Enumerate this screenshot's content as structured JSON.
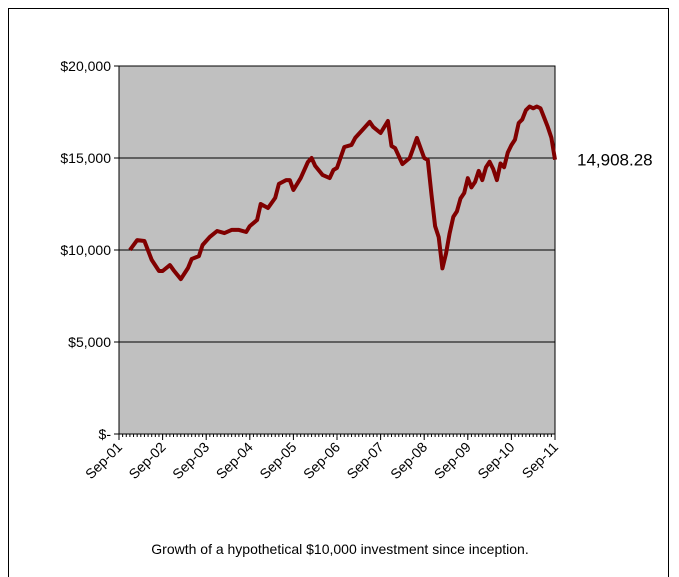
{
  "chart_data": {
    "type": "line",
    "caption": "Growth of a hypothetical $10,000 investment since inception.",
    "x": [
      "Dec-01",
      "Feb-02",
      "Apr-02",
      "Jun-02",
      "Aug-02",
      "Sep-02",
      "Nov-02",
      "Dec-02",
      "Feb-03",
      "Apr-03",
      "May-03",
      "Jul-03",
      "Aug-03",
      "Oct-03",
      "Dec-03",
      "Feb-04",
      "Apr-04",
      "Jun-04",
      "Aug-04",
      "Sep-04",
      "Nov-04",
      "Dec-04",
      "Feb-05",
      "Apr-05",
      "May-05",
      "Jul-05",
      "Aug-05",
      "Sep-05",
      "Nov-05",
      "Jan-06",
      "Feb-06",
      "Mar-06",
      "May-06",
      "Jul-06",
      "Aug-06",
      "Sep-06",
      "Nov-06",
      "Jan-07",
      "Feb-07",
      "Apr-07",
      "Jun-07",
      "Jul-07",
      "Sep-07",
      "Nov-07",
      "Dec-07",
      "Jan-08",
      "Mar-08",
      "May-08",
      "Jun-08",
      "Jul-08",
      "Sep-08",
      "Oct-08",
      "Nov-08",
      "Dec-08",
      "Jan-09",
      "Feb-09",
      "Mar-09",
      "Apr-09",
      "May-09",
      "Jun-09",
      "Jul-09",
      "Aug-09",
      "Sep-09",
      "Oct-09",
      "Nov-09",
      "Dec-09",
      "Jan-10",
      "Feb-10",
      "Mar-10",
      "Apr-10",
      "May-10",
      "Jun-10",
      "Jul-10",
      "Aug-10",
      "Sep-10",
      "Oct-10",
      "Nov-10",
      "Dec-10",
      "Jan-11",
      "Feb-11",
      "Mar-11",
      "Apr-11",
      "May-11",
      "Jun-11",
      "Jul-11",
      "Aug-11",
      "Sep-11"
    ],
    "series": [
      {
        "color": "#800000",
        "values": [
          10000,
          10540,
          10490,
          9460,
          8860,
          8860,
          9180,
          8910,
          8420,
          9020,
          9510,
          9670,
          10270,
          10710,
          11030,
          10920,
          11090,
          11090,
          10980,
          11300,
          11630,
          12500,
          12280,
          12830,
          13590,
          13800,
          13800,
          13260,
          13910,
          14780,
          15000,
          14570,
          14080,
          13910,
          14350,
          14460,
          15600,
          15710,
          16090,
          16520,
          16960,
          16680,
          16360,
          17010,
          15650,
          15540,
          14670,
          15000,
          15540,
          16090,
          15000,
          14890,
          13000,
          11300,
          10700,
          9000,
          9800,
          10900,
          11800,
          12100,
          12800,
          13100,
          13900,
          13400,
          13700,
          14300,
          13800,
          14500,
          14800,
          14400,
          13800,
          14700,
          14500,
          15300,
          15700,
          16000,
          16900,
          17100,
          17600,
          17800,
          17700,
          17800,
          17700,
          17200,
          16700,
          16100,
          14908.28
        ],
        "value_labels": [
          null,
          null,
          null,
          null,
          null,
          null,
          null,
          null,
          null,
          null,
          null,
          null,
          null,
          null,
          null,
          null,
          null,
          null,
          null,
          null,
          null,
          null,
          null,
          null,
          null,
          null,
          null,
          null,
          null,
          null,
          null,
          null,
          null,
          null,
          null,
          null,
          null,
          null,
          null,
          null,
          null,
          null,
          null,
          null,
          null,
          null,
          null,
          null,
          null,
          null,
          null,
          null,
          null,
          null,
          null,
          null,
          null,
          null,
          null,
          null,
          null,
          null,
          null,
          null,
          null,
          null,
          null,
          null,
          null,
          null,
          null,
          null,
          null,
          null,
          null,
          null,
          null,
          null,
          null,
          null,
          null,
          null,
          null,
          null,
          null,
          null,
          "14,908.28"
        ]
      }
    ],
    "xlim": [
      "Sep-01",
      "Sep-11"
    ],
    "xticks": [
      "Sep-01",
      "Sep-02",
      "Sep-03",
      "Sep-04",
      "Sep-05",
      "Sep-06",
      "Sep-07",
      "Sep-08",
      "Sep-09",
      "Sep-10",
      "Sep-11"
    ],
    "ylim": [
      0,
      20000
    ],
    "yticks": [
      {
        "value": 0,
        "label": "$-"
      },
      {
        "value": 5000,
        "label": "$5,000"
      },
      {
        "value": 10000,
        "label": "$10,000"
      },
      {
        "value": 15000,
        "label": "$15,000"
      },
      {
        "value": 20000,
        "label": "$20,000"
      }
    ],
    "grid": true
  }
}
